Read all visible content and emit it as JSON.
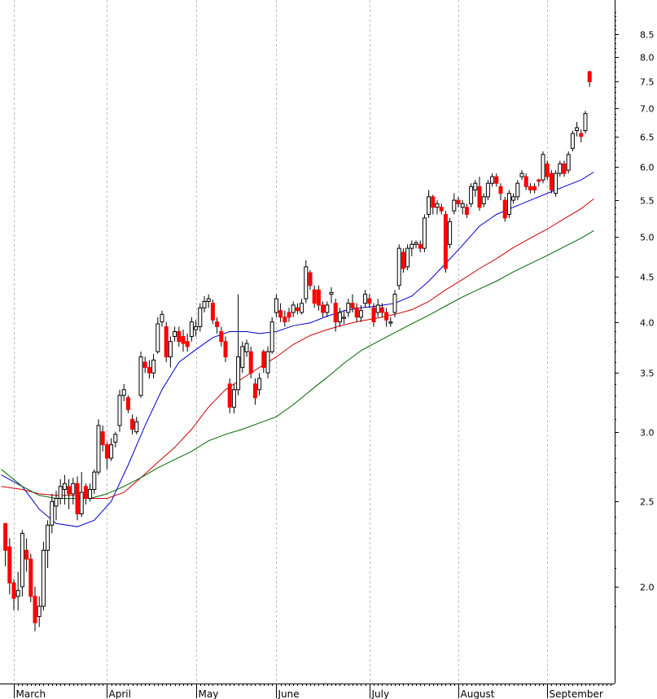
{
  "chart_data": {
    "type": "candlestick",
    "title": "",
    "xlabel": "",
    "ylabel": "",
    "y_scale": "log",
    "ylim": [
      1.72,
      9.2
    ],
    "yticks": [
      2.0,
      2.5,
      3.0,
      3.5,
      4.0,
      4.5,
      5.0,
      5.5,
      6.0,
      6.5,
      7.0,
      7.5,
      8.0,
      8.5
    ],
    "y_tick_labels": [
      "2.0",
      "2.5",
      "3.0",
      "3.5",
      "4.0",
      "4.5",
      "5.0",
      "5.5",
      "6.0",
      "6.5",
      "7.0",
      "7.5",
      "8.0",
      "8.5"
    ],
    "grid": "vertical dashed at month starts",
    "months": [
      {
        "label": "March",
        "x": 0
      },
      {
        "label": "April",
        "x": 22
      },
      {
        "label": "May",
        "x": 43
      },
      {
        "label": "June",
        "x": 62
      },
      {
        "label": "July",
        "x": 84
      },
      {
        "label": "August",
        "x": 105
      },
      {
        "label": "September",
        "x": 126
      }
    ],
    "x_max": 147,
    "colors": {
      "up": "#ffffff",
      "down": "#ff0000",
      "wick": "#000000",
      "ma_short": "#0000cc",
      "ma_mid": "#cc0000",
      "ma_long": "#006600",
      "grid": "#bbbbbb"
    },
    "moving_averages": [
      {
        "key": "ma_short",
        "points": [
          [
            -3,
            2.68
          ],
          [
            2,
            2.6
          ],
          [
            6,
            2.45
          ],
          [
            10,
            2.36
          ],
          [
            15,
            2.34
          ],
          [
            19,
            2.38
          ],
          [
            23,
            2.5
          ],
          [
            27,
            2.75
          ],
          [
            31,
            3.05
          ],
          [
            35,
            3.35
          ],
          [
            39,
            3.6
          ],
          [
            43,
            3.72
          ],
          [
            47,
            3.84
          ],
          [
            51,
            3.9
          ],
          [
            55,
            3.9
          ],
          [
            58,
            3.88
          ],
          [
            62,
            3.9
          ],
          [
            66,
            3.96
          ],
          [
            70,
            3.99
          ],
          [
            74,
            4.06
          ],
          [
            78,
            4.12
          ],
          [
            82,
            4.15
          ],
          [
            86,
            4.17
          ],
          [
            90,
            4.2
          ],
          [
            94,
            4.28
          ],
          [
            98,
            4.45
          ],
          [
            102,
            4.66
          ],
          [
            106,
            4.89
          ],
          [
            110,
            5.14
          ],
          [
            114,
            5.3
          ],
          [
            118,
            5.4
          ],
          [
            122,
            5.5
          ],
          [
            126,
            5.6
          ],
          [
            130,
            5.7
          ],
          [
            134,
            5.8
          ],
          [
            137,
            5.92
          ]
        ]
      },
      {
        "key": "ma_mid",
        "points": [
          [
            -3,
            2.6
          ],
          [
            2,
            2.58
          ],
          [
            6,
            2.55
          ],
          [
            10,
            2.54
          ],
          [
            14,
            2.54
          ],
          [
            18,
            2.52
          ],
          [
            22,
            2.52
          ],
          [
            26,
            2.56
          ],
          [
            30,
            2.66
          ],
          [
            34,
            2.77
          ],
          [
            38,
            2.88
          ],
          [
            42,
            3.02
          ],
          [
            46,
            3.2
          ],
          [
            50,
            3.35
          ],
          [
            54,
            3.45
          ],
          [
            58,
            3.55
          ],
          [
            62,
            3.65
          ],
          [
            66,
            3.77
          ],
          [
            70,
            3.86
          ],
          [
            74,
            3.92
          ],
          [
            78,
            3.97
          ],
          [
            82,
            4.01
          ],
          [
            86,
            4.04
          ],
          [
            90,
            4.08
          ],
          [
            94,
            4.13
          ],
          [
            98,
            4.22
          ],
          [
            102,
            4.35
          ],
          [
            106,
            4.47
          ],
          [
            110,
            4.6
          ],
          [
            114,
            4.72
          ],
          [
            118,
            4.86
          ],
          [
            122,
            4.98
          ],
          [
            126,
            5.1
          ],
          [
            130,
            5.24
          ],
          [
            134,
            5.38
          ],
          [
            137,
            5.52
          ]
        ]
      },
      {
        "key": "ma_long",
        "points": [
          [
            -3,
            2.72
          ],
          [
            2,
            2.6
          ],
          [
            6,
            2.54
          ],
          [
            10,
            2.52
          ],
          [
            14,
            2.52
          ],
          [
            18,
            2.52
          ],
          [
            22,
            2.55
          ],
          [
            26,
            2.6
          ],
          [
            30,
            2.66
          ],
          [
            34,
            2.73
          ],
          [
            38,
            2.79
          ],
          [
            42,
            2.85
          ],
          [
            46,
            2.93
          ],
          [
            50,
            2.98
          ],
          [
            54,
            3.02
          ],
          [
            58,
            3.07
          ],
          [
            62,
            3.12
          ],
          [
            66,
            3.22
          ],
          [
            70,
            3.34
          ],
          [
            74,
            3.46
          ],
          [
            78,
            3.59
          ],
          [
            82,
            3.71
          ],
          [
            86,
            3.8
          ],
          [
            90,
            3.89
          ],
          [
            94,
            3.98
          ],
          [
            98,
            4.07
          ],
          [
            102,
            4.17
          ],
          [
            106,
            4.27
          ],
          [
            110,
            4.36
          ],
          [
            114,
            4.45
          ],
          [
            118,
            4.56
          ],
          [
            122,
            4.66
          ],
          [
            126,
            4.76
          ],
          [
            130,
            4.87
          ],
          [
            134,
            4.98
          ],
          [
            137,
            5.08
          ]
        ]
      }
    ],
    "candles": [
      [
        -2,
        2.36,
        2.36,
        2.11,
        2.2
      ],
      [
        -1,
        2.22,
        2.27,
        1.96,
        2.02
      ],
      [
        0,
        2.02,
        2.04,
        1.88,
        1.94
      ],
      [
        1,
        1.95,
        2.08,
        1.88,
        1.98
      ],
      [
        2,
        2.0,
        2.32,
        1.95,
        2.3
      ],
      [
        3,
        2.2,
        2.27,
        2.08,
        2.15
      ],
      [
        4,
        2.15,
        2.18,
        1.92,
        1.95
      ],
      [
        5,
        1.95,
        2.0,
        1.78,
        1.82
      ],
      [
        6,
        1.85,
        1.95,
        1.8,
        1.9
      ],
      [
        7,
        1.9,
        2.25,
        1.88,
        2.2
      ],
      [
        8,
        2.2,
        2.38,
        2.1,
        2.35
      ],
      [
        9,
        2.35,
        2.55,
        2.3,
        2.5
      ],
      [
        10,
        2.47,
        2.57,
        2.38,
        2.52
      ],
      [
        11,
        2.52,
        2.65,
        2.48,
        2.6
      ],
      [
        12,
        2.58,
        2.68,
        2.48,
        2.62
      ],
      [
        13,
        2.6,
        2.65,
        2.45,
        2.55
      ],
      [
        14,
        2.55,
        2.66,
        2.48,
        2.62
      ],
      [
        15,
        2.62,
        2.67,
        2.38,
        2.42
      ],
      [
        16,
        2.42,
        2.7,
        2.4,
        2.56
      ],
      [
        17,
        2.6,
        2.62,
        2.48,
        2.52
      ],
      [
        18,
        2.52,
        2.62,
        2.5,
        2.58
      ],
      [
        19,
        2.58,
        2.72,
        2.55,
        2.7
      ],
      [
        20,
        2.7,
        3.1,
        2.68,
        3.05
      ],
      [
        21,
        3.0,
        3.05,
        2.85,
        2.9
      ],
      [
        22,
        2.9,
        2.92,
        2.72,
        2.8
      ],
      [
        23,
        2.8,
        2.95,
        2.78,
        2.9
      ],
      [
        24,
        2.92,
        3.0,
        2.88,
        2.98
      ],
      [
        25,
        3.05,
        3.35,
        3.0,
        3.3
      ],
      [
        26,
        3.3,
        3.4,
        3.25,
        3.35
      ],
      [
        27,
        3.28,
        3.3,
        3.15,
        3.18
      ],
      [
        28,
        3.1,
        3.14,
        2.98,
        3.02
      ],
      [
        29,
        3.0,
        3.12,
        2.98,
        3.08
      ],
      [
        30,
        3.3,
        3.7,
        3.28,
        3.65
      ],
      [
        31,
        3.6,
        3.65,
        3.5,
        3.55
      ],
      [
        32,
        3.55,
        3.62,
        3.45,
        3.5
      ],
      [
        33,
        3.5,
        3.68,
        3.45,
        3.62
      ],
      [
        34,
        3.7,
        4.05,
        3.68,
        3.98
      ],
      [
        35,
        4.0,
        4.12,
        3.95,
        4.08
      ],
      [
        36,
        3.95,
        4.0,
        3.6,
        3.65
      ],
      [
        37,
        3.65,
        3.85,
        3.55,
        3.8
      ],
      [
        38,
        3.85,
        3.95,
        3.8,
        3.9
      ],
      [
        39,
        3.9,
        3.95,
        3.75,
        3.8
      ],
      [
        40,
        3.85,
        3.92,
        3.7,
        3.78
      ],
      [
        41,
        3.8,
        3.88,
        3.7,
        3.75
      ],
      [
        42,
        3.85,
        4.05,
        3.8,
        4.0
      ],
      [
        43,
        3.92,
        4.02,
        3.85,
        3.95
      ],
      [
        44,
        3.95,
        4.2,
        3.9,
        4.15
      ],
      [
        45,
        4.15,
        4.28,
        4.1,
        4.22
      ],
      [
        46,
        4.22,
        4.3,
        4.15,
        4.25
      ],
      [
        47,
        4.2,
        4.24,
        3.98,
        4.02
      ],
      [
        48,
        4.0,
        4.05,
        3.88,
        3.95
      ],
      [
        49,
        3.9,
        3.95,
        3.75,
        3.8
      ],
      [
        50,
        3.8,
        3.85,
        3.6,
        3.65
      ],
      [
        51,
        3.4,
        3.45,
        3.15,
        3.2
      ],
      [
        52,
        3.2,
        3.4,
        3.15,
        3.35
      ],
      [
        53,
        3.35,
        4.3,
        3.3,
        3.65
      ],
      [
        54,
        3.55,
        3.8,
        3.5,
        3.75
      ],
      [
        55,
        3.7,
        3.82,
        3.65,
        3.78
      ],
      [
        56,
        3.7,
        3.75,
        3.45,
        3.5
      ],
      [
        57,
        3.4,
        3.45,
        3.22,
        3.28
      ],
      [
        58,
        3.35,
        3.5,
        3.3,
        3.45
      ],
      [
        59,
        3.7,
        3.72,
        3.5,
        3.55
      ],
      [
        60,
        3.5,
        3.75,
        3.45,
        3.7
      ],
      [
        61,
        3.7,
        4.05,
        3.68,
        4.0
      ],
      [
        62,
        4.1,
        4.3,
        4.05,
        4.25
      ],
      [
        63,
        4.12,
        4.2,
        4.0,
        4.05
      ],
      [
        64,
        4.05,
        4.12,
        3.95,
        4.0
      ],
      [
        65,
        4.1,
        4.15,
        4.0,
        4.05
      ],
      [
        66,
        4.1,
        4.22,
        4.05,
        4.18
      ],
      [
        67,
        4.15,
        4.2,
        4.08,
        4.12
      ],
      [
        68,
        4.1,
        4.25,
        4.08,
        4.2
      ],
      [
        69,
        4.25,
        4.7,
        4.2,
        4.62
      ],
      [
        70,
        4.55,
        4.58,
        4.35,
        4.4
      ],
      [
        71,
        4.35,
        4.4,
        4.15,
        4.2
      ],
      [
        72,
        4.35,
        4.4,
        4.12,
        4.18
      ],
      [
        73,
        4.18,
        4.22,
        4.05,
        4.1
      ],
      [
        74,
        4.1,
        4.22,
        4.05,
        4.18
      ],
      [
        75,
        4.3,
        4.38,
        4.2,
        4.32
      ],
      [
        76,
        4.2,
        4.25,
        3.9,
        4.0
      ],
      [
        77,
        4.0,
        4.15,
        3.95,
        4.1
      ],
      [
        78,
        4.05,
        4.12,
        3.98,
        4.05
      ],
      [
        79,
        4.1,
        4.25,
        4.05,
        4.2
      ],
      [
        80,
        4.2,
        4.3,
        4.1,
        4.15
      ],
      [
        81,
        4.15,
        4.2,
        4.0,
        4.05
      ],
      [
        82,
        4.05,
        4.18,
        4.0,
        4.12
      ],
      [
        83,
        4.2,
        4.35,
        4.15,
        4.3
      ],
      [
        84,
        4.25,
        4.3,
        4.15,
        4.2
      ],
      [
        85,
        4.15,
        4.2,
        3.95,
        4.0
      ],
      [
        86,
        4.1,
        4.25,
        4.05,
        4.18
      ],
      [
        87,
        4.15,
        4.2,
        4.05,
        4.1
      ],
      [
        88,
        4.1,
        4.15,
        3.95,
        4.02
      ],
      [
        89,
        4.0,
        4.05,
        3.95,
        4.0
      ],
      [
        90,
        4.1,
        4.35,
        4.05,
        4.3
      ],
      [
        91,
        4.4,
        4.9,
        4.35,
        4.85
      ],
      [
        92,
        4.8,
        4.85,
        4.55,
        4.6
      ],
      [
        93,
        4.62,
        4.9,
        4.58,
        4.85
      ],
      [
        94,
        4.85,
        4.95,
        4.75,
        4.9
      ],
      [
        95,
        4.9,
        4.95,
        4.85,
        4.92
      ],
      [
        96,
        4.9,
        4.95,
        4.8,
        4.85
      ],
      [
        97,
        4.85,
        5.3,
        4.8,
        5.25
      ],
      [
        98,
        5.3,
        5.65,
        5.25,
        5.55
      ],
      [
        99,
        5.55,
        5.58,
        5.3,
        5.4
      ],
      [
        100,
        5.4,
        5.5,
        5.3,
        5.45
      ],
      [
        101,
        5.4,
        5.45,
        5.3,
        5.35
      ],
      [
        102,
        5.3,
        5.35,
        4.55,
        4.6
      ],
      [
        103,
        4.9,
        5.25,
        4.85,
        5.2
      ],
      [
        104,
        5.35,
        5.6,
        5.3,
        5.5
      ],
      [
        105,
        5.5,
        5.55,
        5.4,
        5.45
      ],
      [
        106,
        5.4,
        5.5,
        5.3,
        5.45
      ],
      [
        107,
        5.4,
        5.45,
        5.25,
        5.3
      ],
      [
        108,
        5.45,
        5.75,
        5.4,
        5.7
      ],
      [
        109,
        5.65,
        5.8,
        5.55,
        5.75
      ],
      [
        110,
        5.7,
        5.85,
        5.35,
        5.4
      ],
      [
        111,
        5.45,
        5.6,
        5.4,
        5.55
      ],
      [
        112,
        5.55,
        5.8,
        5.5,
        5.75
      ],
      [
        113,
        5.75,
        5.9,
        5.7,
        5.85
      ],
      [
        114,
        5.85,
        5.9,
        5.7,
        5.75
      ],
      [
        115,
        5.7,
        5.75,
        5.5,
        5.6
      ],
      [
        116,
        5.5,
        5.55,
        5.2,
        5.25
      ],
      [
        117,
        5.3,
        5.65,
        5.25,
        5.6
      ],
      [
        118,
        5.5,
        5.6,
        5.45,
        5.55
      ],
      [
        119,
        5.55,
        5.8,
        5.5,
        5.75
      ],
      [
        120,
        5.85,
        5.95,
        5.8,
        5.9
      ],
      [
        121,
        5.85,
        5.9,
        5.65,
        5.7
      ],
      [
        122,
        5.7,
        5.75,
        5.6,
        5.65
      ],
      [
        123,
        5.7,
        5.75,
        5.6,
        5.65
      ],
      [
        124,
        5.8,
        5.82,
        5.7,
        5.78
      ],
      [
        125,
        5.8,
        6.25,
        5.75,
        6.2
      ],
      [
        126,
        6.05,
        6.1,
        5.8,
        5.85
      ],
      [
        127,
        5.9,
        5.95,
        5.6,
        5.65
      ],
      [
        128,
        5.6,
        5.95,
        5.55,
        5.9
      ],
      [
        129,
        5.9,
        6.1,
        5.85,
        6.05
      ],
      [
        130,
        6.05,
        6.1,
        5.85,
        5.9
      ],
      [
        131,
        5.95,
        6.25,
        5.9,
        6.2
      ],
      [
        132,
        6.3,
        6.6,
        6.25,
        6.55
      ],
      [
        133,
        6.6,
        6.75,
        6.5,
        6.65
      ],
      [
        134,
        6.55,
        6.62,
        6.4,
        6.5
      ],
      [
        135,
        6.6,
        6.95,
        6.55,
        6.9
      ],
      [
        136,
        7.7,
        7.72,
        7.4,
        7.5
      ]
    ]
  }
}
